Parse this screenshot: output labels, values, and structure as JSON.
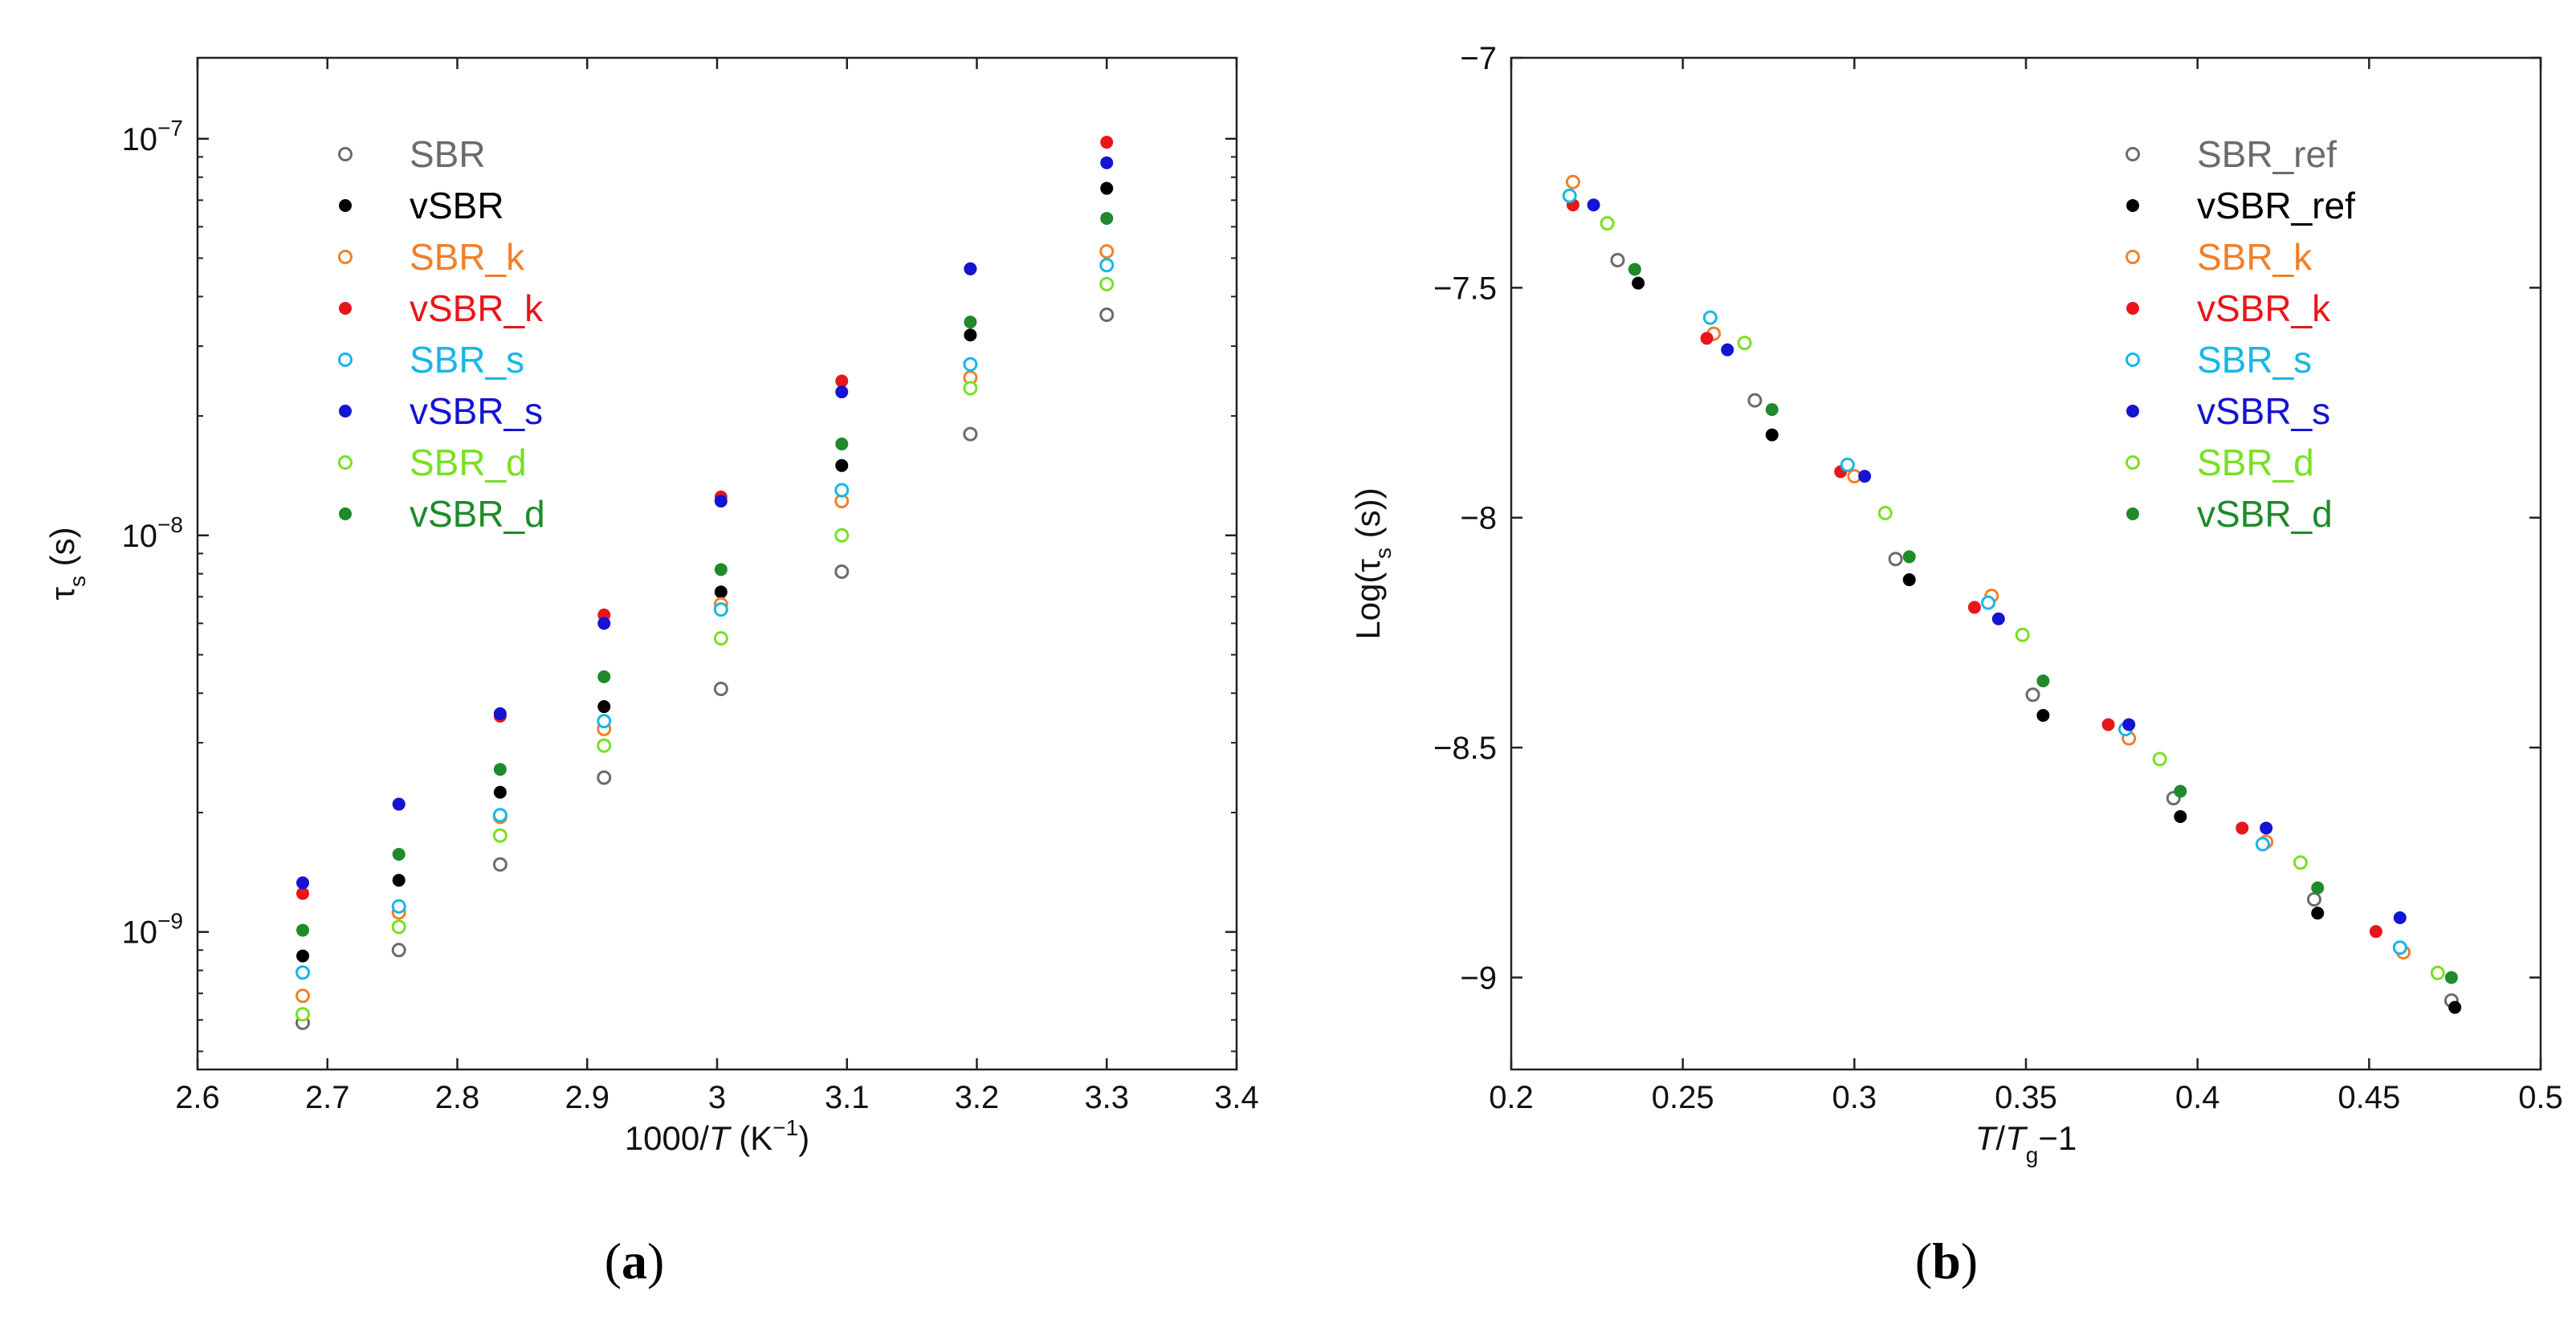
{
  "chart_data": [
    {
      "type": "scatter",
      "panel_label": "(a)",
      "panel_letter": "a",
      "xlabel_pre": "1000/",
      "xlabel_italic": "T",
      "xlabel_post": " (K",
      "xlabel_sup": "−1",
      "xlabel_close": ")",
      "ylabel_main": "τ",
      "ylabel_sub": "s",
      "ylabel_post": " (s)",
      "xlim": [
        2.6,
        3.4
      ],
      "ylim": [
        4.5e-10,
        1.6e-07
      ],
      "yscale": "log",
      "xticks": [
        {
          "value": 2.6,
          "label": "2.6"
        },
        {
          "value": 2.7,
          "label": "2.7"
        },
        {
          "value": 2.8,
          "label": "2.8"
        },
        {
          "value": 2.9,
          "label": "2.9"
        },
        {
          "value": 3.0,
          "label": "3"
        },
        {
          "value": 3.1,
          "label": "3.1"
        },
        {
          "value": 3.2,
          "label": "3.2"
        },
        {
          "value": 3.3,
          "label": "3.3"
        },
        {
          "value": 3.4,
          "label": "3.4"
        }
      ],
      "yticks": [
        {
          "value": 1e-09,
          "base": "10",
          "exp": "−9"
        },
        {
          "value": 1e-08,
          "base": "10",
          "exp": "−8"
        },
        {
          "value": 1e-07,
          "base": "10",
          "exp": "−7"
        }
      ],
      "legend_position": "top-left",
      "x": [
        2.681,
        2.755,
        2.833,
        2.913,
        3.003,
        3.096,
        3.195,
        3.3
      ],
      "series": [
        {
          "name": "SBR",
          "color": "#6b6b6b",
          "marker": "open",
          "values": [
            5.9e-10,
            9e-10,
            1.48e-09,
            2.45e-09,
            4.1e-09,
            8.1e-09,
            1.8e-08,
            3.6e-08
          ]
        },
        {
          "name": "vSBR",
          "color": "#000000",
          "marker": "filled",
          "values": [
            8.7e-10,
            1.35e-09,
            2.25e-09,
            3.7e-09,
            7.2e-09,
            1.5e-08,
            3.2e-08,
            7.5e-08
          ]
        },
        {
          "name": "SBR_k",
          "color": "#f0802a",
          "marker": "open",
          "values": [
            6.9e-10,
            1.12e-09,
            1.95e-09,
            3.25e-09,
            6.7e-09,
            1.22e-08,
            2.5e-08,
            5.2e-08
          ]
        },
        {
          "name": "vSBR_k",
          "color": "#e8161b",
          "marker": "filled",
          "values": [
            1.25e-09,
            2.1e-09,
            3.5e-09,
            6.3e-09,
            1.25e-08,
            2.45e-08,
            4.7e-08,
            9.8e-08
          ]
        },
        {
          "name": "SBR_s",
          "color": "#18b6e8",
          "marker": "open",
          "values": [
            7.9e-10,
            1.16e-09,
            1.97e-09,
            3.4e-09,
            6.5e-09,
            1.3e-08,
            2.7e-08,
            4.8e-08
          ]
        },
        {
          "name": "vSBR_s",
          "color": "#1414d2",
          "marker": "filled",
          "values": [
            1.33e-09,
            2.1e-09,
            3.55e-09,
            6e-09,
            1.22e-08,
            2.3e-08,
            4.7e-08,
            8.7e-08
          ]
        },
        {
          "name": "SBR_d",
          "color": "#78e024",
          "marker": "open",
          "values": [
            6.2e-10,
            1.03e-09,
            1.75e-09,
            2.95e-09,
            5.5e-09,
            1e-08,
            2.35e-08,
            4.3e-08
          ]
        },
        {
          "name": "vSBR_d",
          "color": "#1e8a2a",
          "marker": "filled",
          "values": [
            1.01e-09,
            1.57e-09,
            2.57e-09,
            4.4e-09,
            8.2e-09,
            1.7e-08,
            3.45e-08,
            6.3e-08
          ]
        }
      ]
    },
    {
      "type": "scatter",
      "panel_label": "(b)",
      "panel_letter": "b",
      "xlabel_italic1": "T",
      "xlabel_slash": "/",
      "xlabel_italic2": "T",
      "xlabel_sub": "g",
      "xlabel_post": "−1",
      "ylabel_pre": "Log(τ",
      "ylabel_sub": "s",
      "ylabel_post": " (s))",
      "xlim": [
        0.2,
        0.5
      ],
      "ylim": [
        -9.2,
        -7.0
      ],
      "yscale": "linear",
      "xticks": [
        {
          "value": 0.2,
          "label": "0.2"
        },
        {
          "value": 0.25,
          "label": "0.25"
        },
        {
          "value": 0.3,
          "label": "0.3"
        },
        {
          "value": 0.35,
          "label": "0.35"
        },
        {
          "value": 0.4,
          "label": "0.4"
        },
        {
          "value": 0.45,
          "label": "0.45"
        },
        {
          "value": 0.5,
          "label": "0.5"
        }
      ],
      "yticks": [
        {
          "value": -7.0,
          "label": "−7"
        },
        {
          "value": -7.5,
          "label": "−7.5"
        },
        {
          "value": -8.0,
          "label": "−8"
        },
        {
          "value": -8.5,
          "label": "−8.5"
        },
        {
          "value": -9.0,
          "label": "−9"
        }
      ],
      "legend_position": "top-right",
      "series": [
        {
          "name": "SBR_ref",
          "color": "#6b6b6b",
          "marker": "open",
          "points": [
            [
              0.231,
              -7.44
            ],
            [
              0.271,
              -7.745
            ],
            [
              0.312,
              -8.09
            ],
            [
              0.352,
              -8.385
            ],
            [
              0.393,
              -8.61
            ],
            [
              0.434,
              -8.83
            ],
            [
              0.474,
              -9.05
            ]
          ]
        },
        {
          "name": "vSBR_ref",
          "color": "#000000",
          "marker": "filled",
          "points": [
            [
              0.237,
              -7.49
            ],
            [
              0.276,
              -7.82
            ],
            [
              0.316,
              -8.135
            ],
            [
              0.355,
              -8.43
            ],
            [
              0.395,
              -8.65
            ],
            [
              0.435,
              -8.86
            ],
            [
              0.475,
              -9.065
            ]
          ]
        },
        {
          "name": "SBR_k",
          "color": "#f0802a",
          "marker": "open",
          "points": [
            [
              0.218,
              -7.27
            ],
            [
              0.259,
              -7.6
            ],
            [
              0.3,
              -7.91
            ],
            [
              0.34,
              -8.17
            ],
            [
              0.38,
              -8.48
            ],
            [
              0.42,
              -8.705
            ],
            [
              0.46,
              -8.945
            ]
          ]
        },
        {
          "name": "vSBR_k",
          "color": "#e8161b",
          "marker": "filled",
          "points": [
            [
              0.218,
              -7.32
            ],
            [
              0.257,
              -7.61
            ],
            [
              0.296,
              -7.9
            ],
            [
              0.335,
              -8.195
            ],
            [
              0.374,
              -8.45
            ],
            [
              0.413,
              -8.675
            ],
            [
              0.452,
              -8.9
            ]
          ]
        },
        {
          "name": "SBR_s",
          "color": "#18b6e8",
          "marker": "open",
          "points": [
            [
              0.217,
              -7.3
            ],
            [
              0.258,
              -7.565
            ],
            [
              0.298,
              -7.885
            ],
            [
              0.339,
              -8.185
            ],
            [
              0.379,
              -8.46
            ],
            [
              0.419,
              -8.71
            ],
            [
              0.459,
              -8.935
            ]
          ]
        },
        {
          "name": "vSBR_s",
          "color": "#1414d2",
          "marker": "filled",
          "points": [
            [
              0.224,
              -7.32
            ],
            [
              0.263,
              -7.635
            ],
            [
              0.303,
              -7.91
            ],
            [
              0.342,
              -8.22
            ],
            [
              0.38,
              -8.45
            ],
            [
              0.42,
              -8.675
            ],
            [
              0.459,
              -8.87
            ]
          ]
        },
        {
          "name": "SBR_d",
          "color": "#78e024",
          "marker": "open",
          "points": [
            [
              0.228,
              -7.36
            ],
            [
              0.268,
              -7.62
            ],
            [
              0.309,
              -7.99
            ],
            [
              0.349,
              -8.255
            ],
            [
              0.389,
              -8.525
            ],
            [
              0.43,
              -8.75
            ],
            [
              0.47,
              -8.99
            ]
          ]
        },
        {
          "name": "vSBR_d",
          "color": "#1e8a2a",
          "marker": "filled",
          "points": [
            [
              0.236,
              -7.46
            ],
            [
              0.276,
              -7.765
            ],
            [
              0.316,
              -8.085
            ],
            [
              0.355,
              -8.355
            ],
            [
              0.395,
              -8.595
            ],
            [
              0.435,
              -8.805
            ],
            [
              0.474,
              -9.0
            ]
          ]
        }
      ]
    }
  ]
}
